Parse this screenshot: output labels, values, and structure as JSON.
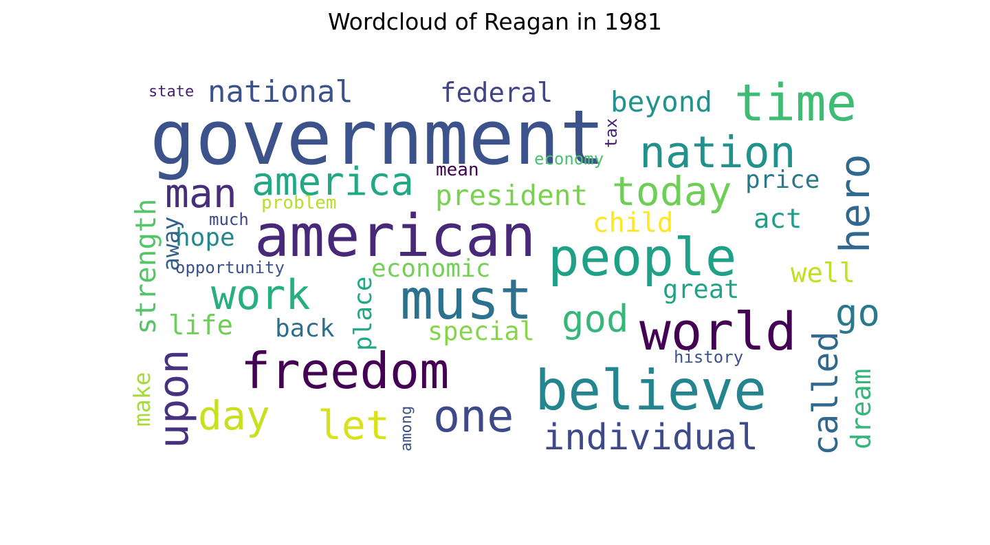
{
  "title": "Wordcloud of Reagan in 1981",
  "chart_data": {
    "type": "wordcloud",
    "title": "Wordcloud of Reagan in 1981",
    "colormap": "viridis",
    "background": "#ffffff",
    "words": [
      {
        "text": "government",
        "weight": 1.0,
        "color": "#3b528b",
        "orientation": "horizontal"
      },
      {
        "text": "american",
        "weight": 0.78,
        "color": "#482878",
        "orientation": "horizontal"
      },
      {
        "text": "must",
        "weight": 0.74,
        "color": "#2c728e",
        "orientation": "horizontal"
      },
      {
        "text": "believe",
        "weight": 0.74,
        "color": "#25858e",
        "orientation": "horizontal"
      },
      {
        "text": "people",
        "weight": 0.7,
        "color": "#1fa187",
        "orientation": "horizontal"
      },
      {
        "text": "world",
        "weight": 0.7,
        "color": "#440154",
        "orientation": "horizontal"
      },
      {
        "text": "time",
        "weight": 0.68,
        "color": "#3fbc73",
        "orientation": "horizontal"
      },
      {
        "text": "freedom",
        "weight": 0.66,
        "color": "#440154",
        "orientation": "horizontal"
      },
      {
        "text": "one",
        "weight": 0.6,
        "color": "#3e4989",
        "orientation": "horizontal"
      },
      {
        "text": "nation",
        "weight": 0.58,
        "color": "#21918c",
        "orientation": "horizontal"
      },
      {
        "text": "upon",
        "weight": 0.56,
        "color": "#46327e",
        "orientation": "vertical"
      },
      {
        "text": "work",
        "weight": 0.56,
        "color": "#29af7f",
        "orientation": "horizontal"
      },
      {
        "text": "hero",
        "weight": 0.56,
        "color": "#31688e",
        "orientation": "vertical"
      },
      {
        "text": "man",
        "weight": 0.54,
        "color": "#472d7b",
        "orientation": "horizontal"
      },
      {
        "text": "today",
        "weight": 0.54,
        "color": "#6ece58",
        "orientation": "horizontal"
      },
      {
        "text": "day",
        "weight": 0.54,
        "color": "#c8e020",
        "orientation": "horizontal"
      },
      {
        "text": "let",
        "weight": 0.54,
        "color": "#d8e219",
        "orientation": "horizontal"
      },
      {
        "text": "america",
        "weight": 0.52,
        "color": "#22a884",
        "orientation": "horizontal"
      },
      {
        "text": "god",
        "weight": 0.5,
        "color": "#35b779",
        "orientation": "horizontal"
      },
      {
        "text": "go",
        "weight": 0.5,
        "color": "#2a788e",
        "orientation": "horizontal"
      },
      {
        "text": "individual",
        "weight": 0.48,
        "color": "#3e4a89",
        "orientation": "horizontal"
      },
      {
        "text": "called",
        "weight": 0.46,
        "color": "#31688e",
        "orientation": "vertical"
      },
      {
        "text": "national",
        "weight": 0.4,
        "color": "#3b528b",
        "orientation": "horizontal"
      },
      {
        "text": "beyond",
        "weight": 0.38,
        "color": "#20938c",
        "orientation": "horizontal"
      },
      {
        "text": "president",
        "weight": 0.38,
        "color": "#7ad151",
        "orientation": "horizontal"
      },
      {
        "text": "strength",
        "weight": 0.38,
        "color": "#54c568",
        "orientation": "vertical"
      },
      {
        "text": "dream",
        "weight": 0.36,
        "color": "#35b779",
        "orientation": "vertical"
      },
      {
        "text": "federal",
        "weight": 0.36,
        "color": "#414487",
        "orientation": "horizontal"
      },
      {
        "text": "child",
        "weight": 0.36,
        "color": "#fde725",
        "orientation": "horizontal"
      },
      {
        "text": "act",
        "weight": 0.36,
        "color": "#1f9e89",
        "orientation": "horizontal"
      },
      {
        "text": "well",
        "weight": 0.36,
        "color": "#c2df23",
        "orientation": "horizontal"
      },
      {
        "text": "economic",
        "weight": 0.33,
        "color": "#73d056",
        "orientation": "horizontal"
      },
      {
        "text": "life",
        "weight": 0.36,
        "color": "#6ece58",
        "orientation": "horizontal"
      },
      {
        "text": "special",
        "weight": 0.34,
        "color": "#86d549",
        "orientation": "horizontal"
      },
      {
        "text": "great",
        "weight": 0.34,
        "color": "#20a386",
        "orientation": "horizontal"
      },
      {
        "text": "place",
        "weight": 0.33,
        "color": "#22a884",
        "orientation": "vertical"
      },
      {
        "text": "hope",
        "weight": 0.33,
        "color": "#24878e",
        "orientation": "horizontal"
      },
      {
        "text": "back",
        "weight": 0.33,
        "color": "#2d708e",
        "orientation": "horizontal"
      },
      {
        "text": "price",
        "weight": 0.33,
        "color": "#2a788e",
        "orientation": "horizontal"
      },
      {
        "text": "away",
        "weight": 0.3,
        "color": "#33638d",
        "orientation": "vertical"
      },
      {
        "text": "make",
        "weight": 0.3,
        "color": "#a5db36",
        "orientation": "vertical"
      },
      {
        "text": "mean",
        "weight": 0.24,
        "color": "#440154",
        "orientation": "horizontal"
      },
      {
        "text": "problem",
        "weight": 0.24,
        "color": "#b5de2b",
        "orientation": "horizontal"
      },
      {
        "text": "much",
        "weight": 0.22,
        "color": "#3e4989",
        "orientation": "horizontal"
      },
      {
        "text": "opportunity",
        "weight": 0.22,
        "color": "#3b528b",
        "orientation": "horizontal"
      },
      {
        "text": "tax",
        "weight": 0.22,
        "color": "#481f70",
        "orientation": "vertical"
      },
      {
        "text": "economy",
        "weight": 0.22,
        "color": "#4ac16d",
        "orientation": "horizontal"
      },
      {
        "text": "state",
        "weight": 0.2,
        "color": "#481f70",
        "orientation": "horizontal"
      },
      {
        "text": "history",
        "weight": 0.22,
        "color": "#3b528b",
        "orientation": "horizontal"
      },
      {
        "text": "among",
        "weight": 0.2,
        "color": "#3b528b",
        "orientation": "vertical"
      }
    ]
  }
}
